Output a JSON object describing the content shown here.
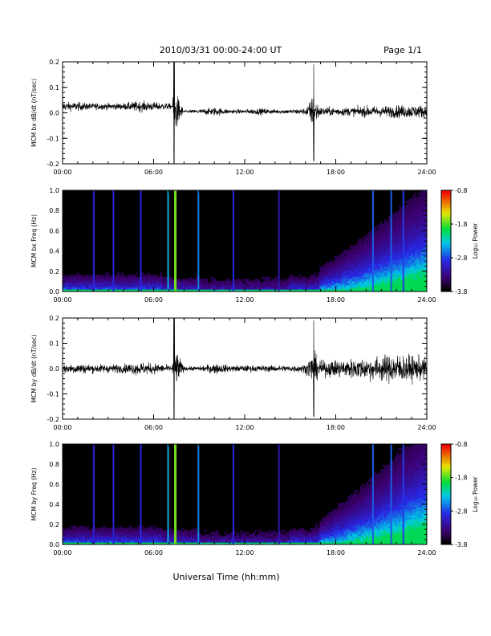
{
  "header": {
    "title": "2010/03/31  00:00-24:00 UT",
    "page": "Page 1/1"
  },
  "xlabel": "Universal Time (hh:mm)",
  "x_ticks": [
    "00:00",
    "06:00",
    "12:00",
    "18:00",
    "24:00"
  ],
  "chart_data": [
    {
      "type": "line",
      "ylabel": "MCM bx dB/dt (nT/sec)",
      "xlim_hours": [
        0,
        24
      ],
      "ylim": [
        -0.2,
        0.2
      ],
      "y_ticks": [
        "0.2",
        "0.1",
        "0.0",
        "-0.1",
        "-0.2"
      ],
      "grid": false,
      "series": [
        {
          "x_hours": [
            0,
            1,
            2,
            3,
            4,
            5,
            6,
            7,
            7.2,
            7.4,
            8,
            9,
            10,
            11,
            12,
            13,
            14,
            15,
            16,
            16.5,
            17,
            18,
            19,
            20,
            21,
            22,
            23,
            24
          ],
          "amplitude": [
            0.04,
            0.04,
            0.03,
            0.03,
            0.03,
            0.05,
            0.04,
            0.03,
            0.02,
            0.2,
            0.01,
            0.02,
            0.04,
            0.02,
            0.02,
            0.03,
            0.02,
            0.02,
            0.03,
            0.15,
            0.04,
            0.04,
            0.04,
            0.05,
            0.05,
            0.06,
            0.06,
            0.06
          ]
        }
      ]
    },
    {
      "type": "heatmap",
      "ylabel": "MCM bx Freq (Hz)",
      "xlim_hours": [
        0,
        24
      ],
      "ylim": [
        0.0,
        1.0
      ],
      "y_ticks": [
        "1.0",
        "0.8",
        "0.6",
        "0.4",
        "0.2",
        "0.0"
      ],
      "colorbar": {
        "label": "Log₁₀ Power",
        "range": [
          -3.8,
          -0.8
        ],
        "ticks": [
          "-0.8",
          "-1.8",
          "-2.8",
          "-3.8"
        ]
      }
    },
    {
      "type": "line",
      "ylabel": "MCM by dB/dt (nT/sec)",
      "xlim_hours": [
        0,
        24
      ],
      "ylim": [
        -0.2,
        0.2
      ],
      "y_ticks": [
        "0.2",
        "0.1",
        "0.0",
        "-0.1",
        "-0.2"
      ],
      "grid": false,
      "series": [
        {
          "x_hours": [
            0,
            1,
            2,
            3,
            4,
            5,
            6,
            7,
            7.2,
            7.4,
            8,
            9,
            10,
            11,
            12,
            13,
            14,
            15,
            16,
            16.5,
            17,
            18,
            19,
            20,
            21,
            22,
            23,
            24
          ],
          "amplitude": [
            0.04,
            0.05,
            0.04,
            0.04,
            0.04,
            0.06,
            0.05,
            0.03,
            0.02,
            0.2,
            0.02,
            0.02,
            0.05,
            0.03,
            0.03,
            0.03,
            0.03,
            0.03,
            0.04,
            0.15,
            0.07,
            0.08,
            0.09,
            0.1,
            0.12,
            0.14,
            0.12,
            0.1
          ]
        }
      ]
    },
    {
      "type": "heatmap",
      "ylabel": "MCM by Freq (Hz)",
      "xlim_hours": [
        0,
        24
      ],
      "ylim": [
        0.0,
        1.0
      ],
      "y_ticks": [
        "1.0",
        "0.8",
        "0.6",
        "0.4",
        "0.2",
        "0.0"
      ],
      "colorbar": {
        "label": "Log₁₀ Power",
        "range": [
          -3.8,
          -0.8
        ],
        "ticks": [
          "-0.8",
          "-1.8",
          "-2.8",
          "-3.8"
        ]
      }
    }
  ]
}
